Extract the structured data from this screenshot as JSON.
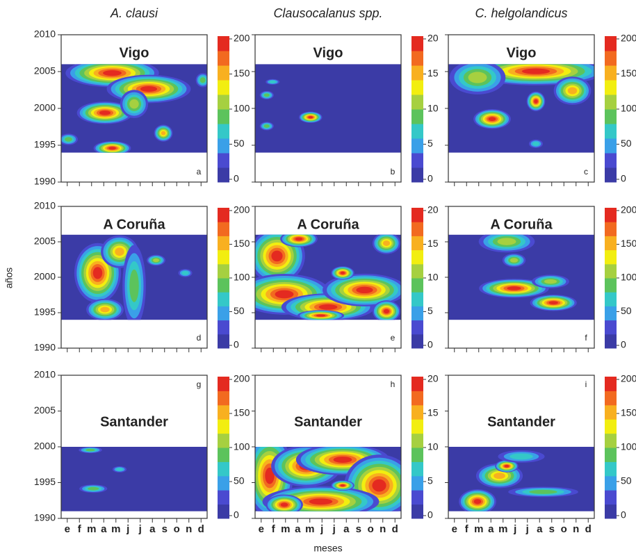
{
  "column_titles": [
    "A. clausi",
    "Clausocalanus spp.",
    "C. helgolandicus"
  ],
  "y_label": "años",
  "x_label": "meses",
  "colormap": [
    "#3b3ba6",
    "#4a4ad0",
    "#3aa0e8",
    "#34c8c8",
    "#5cc35c",
    "#a6d040",
    "#f2ee10",
    "#f8b020",
    "#f26a20",
    "#e42a20"
  ],
  "chart_data": [
    {
      "type": "contour",
      "title": "Vigo",
      "label": "a",
      "data_years": [
        1994,
        2006
      ],
      "ylim": [
        1990,
        2010
      ],
      "yticks": [
        1990,
        1995,
        2000,
        2005,
        2010
      ],
      "categories": [
        null,
        null,
        null,
        null,
        null,
        null,
        null,
        null,
        null,
        null,
        null,
        null
      ],
      "clim": [
        0,
        200
      ],
      "cticks": [
        0,
        50,
        100,
        150,
        200
      ]
    },
    {
      "type": "contour",
      "title": "Vigo",
      "label": "b",
      "data_years": [
        1994,
        2006
      ],
      "ylim": [
        1990,
        2010
      ],
      "yticks": [
        1990,
        1995,
        2000,
        2005,
        2010
      ],
      "categories": [
        null,
        null,
        null,
        null,
        null,
        null,
        null,
        null,
        null,
        null,
        null,
        null
      ],
      "clim": [
        0,
        20
      ],
      "cticks": [
        0,
        5,
        10,
        15,
        20
      ]
    },
    {
      "type": "contour",
      "title": "Vigo",
      "label": "c",
      "data_years": [
        1994,
        2006
      ],
      "ylim": [
        1990,
        2010
      ],
      "yticks": [
        1990,
        1995,
        2000,
        2005,
        2010
      ],
      "categories": [
        null,
        null,
        null,
        null,
        null,
        null,
        null,
        null,
        null,
        null,
        null,
        null
      ],
      "clim": [
        0,
        200
      ],
      "cticks": [
        0,
        50,
        100,
        150,
        200
      ]
    },
    {
      "type": "contour",
      "title": "A Coruña",
      "label": "d",
      "data_years": [
        1994,
        2006
      ],
      "ylim": [
        1990,
        2010
      ],
      "yticks": [
        1990,
        1995,
        2000,
        2005,
        2010
      ],
      "categories": [
        null,
        null,
        null,
        null,
        null,
        null,
        null,
        null,
        null,
        null,
        null,
        null
      ],
      "clim": [
        0,
        200
      ],
      "cticks": [
        0,
        50,
        100,
        150,
        200
      ]
    },
    {
      "type": "contour",
      "title": "A Coruña",
      "label": "e",
      "data_years": [
        1994,
        2006
      ],
      "ylim": [
        1990,
        2010
      ],
      "yticks": [
        1990,
        1995,
        2000,
        2005,
        2010
      ],
      "categories": [
        null,
        null,
        null,
        null,
        null,
        null,
        null,
        null,
        null,
        null,
        null,
        null
      ],
      "clim": [
        0,
        20
      ],
      "cticks": [
        0,
        5,
        10,
        15,
        20
      ]
    },
    {
      "type": "contour",
      "title": "A Coruña",
      "label": "f",
      "data_years": [
        1994,
        2006
      ],
      "ylim": [
        1990,
        2010
      ],
      "yticks": [
        1990,
        1995,
        2000,
        2005,
        2010
      ],
      "categories": [
        null,
        null,
        null,
        null,
        null,
        null,
        null,
        null,
        null,
        null,
        null,
        null
      ],
      "clim": [
        0,
        200
      ],
      "cticks": [
        0,
        50,
        100,
        150,
        200
      ]
    },
    {
      "type": "contour",
      "title": "Santander",
      "label": "g",
      "data_years": [
        1991,
        2000
      ],
      "ylim": [
        1990,
        2010
      ],
      "yticks": [
        1990,
        1995,
        2000,
        2005,
        2010
      ],
      "categories": [
        "e",
        "f",
        "m",
        "a",
        "m",
        "j",
        "j",
        "a",
        "s",
        "o",
        "n",
        "d"
      ],
      "clim": [
        0,
        200
      ],
      "cticks": [
        0,
        50,
        100,
        150,
        200
      ]
    },
    {
      "type": "contour",
      "title": "Santander",
      "label": "h",
      "data_years": [
        1991,
        2000
      ],
      "ylim": [
        1990,
        2010
      ],
      "yticks": [
        1990,
        1995,
        2000,
        2005,
        2010
      ],
      "categories": [
        "e",
        "f",
        "m",
        "a",
        "m",
        "j",
        "j",
        "a",
        "s",
        "o",
        "n",
        "d"
      ],
      "clim": [
        0,
        20
      ],
      "cticks": [
        0,
        5,
        10,
        15,
        20
      ]
    },
    {
      "type": "contour",
      "title": "Santander",
      "label": "i",
      "data_years": [
        1991,
        2000
      ],
      "ylim": [
        1990,
        2010
      ],
      "yticks": [
        1990,
        1995,
        2000,
        2005,
        2010
      ],
      "categories": [
        "e",
        "f",
        "m",
        "a",
        "m",
        "j",
        "j",
        "a",
        "s",
        "o",
        "n",
        "d"
      ],
      "clim": [
        0,
        200
      ],
      "cticks": [
        0,
        50,
        100,
        150,
        200
      ]
    }
  ]
}
